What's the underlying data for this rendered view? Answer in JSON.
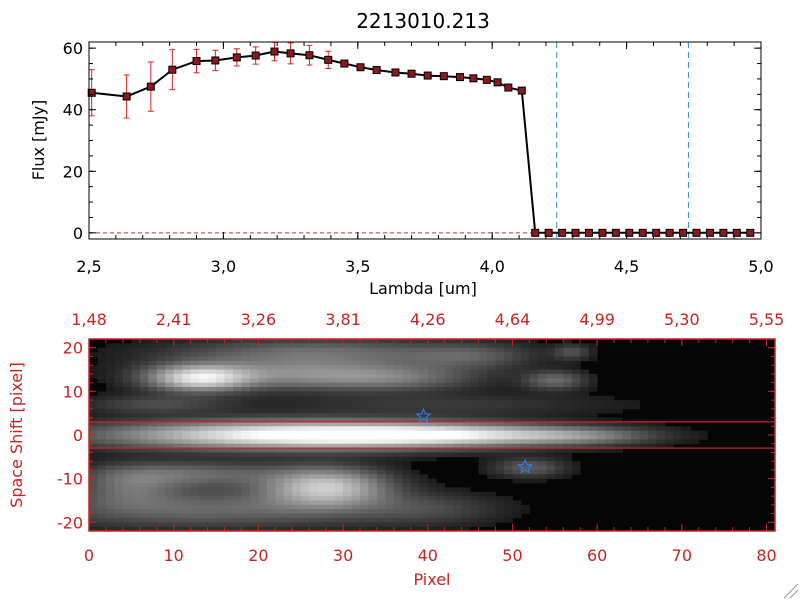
{
  "chart_data": [
    {
      "type": "line",
      "title": "2213010.213",
      "xlabel": "Lambda [um]",
      "ylabel": "Flux [mJy]",
      "xlim": [
        2.5,
        5.0
      ],
      "ylim": [
        -2,
        62
      ],
      "xticks": [
        "2.5",
        "3.0",
        "3.5",
        "4.0",
        "4.5",
        "5.0"
      ],
      "yticks": [
        "0",
        "20",
        "40",
        "60"
      ],
      "series": [
        {
          "x": [
            2.51,
            2.64,
            2.73,
            2.81,
            2.9,
            2.97,
            3.05,
            3.12,
            3.19,
            3.25,
            3.32,
            3.39,
            3.45,
            3.51,
            3.57,
            3.64,
            3.7,
            3.76,
            3.82,
            3.88,
            3.93,
            3.98,
            4.02,
            4.06,
            4.11,
            4.16,
            4.21,
            4.26,
            4.31,
            4.36,
            4.41,
            4.46,
            4.51,
            4.56,
            4.61,
            4.66,
            4.71,
            4.76,
            4.81,
            4.86,
            4.91,
            4.96
          ],
          "y": [
            45.5,
            44.3,
            47.5,
            53.0,
            55.8,
            56.0,
            57.0,
            57.6,
            58.9,
            58.3,
            57.7,
            56.2,
            55.0,
            53.8,
            52.9,
            52.1,
            51.7,
            51.1,
            50.9,
            50.6,
            50.2,
            49.7,
            48.9,
            47.2,
            46.2,
            0,
            0,
            0,
            0,
            0,
            0,
            0,
            0,
            0,
            0,
            0,
            0,
            0,
            0,
            0,
            0,
            0
          ],
          "yerr": [
            7.5,
            7.0,
            8.0,
            6.5,
            3.8,
            3.3,
            2.8,
            2.8,
            3.0,
            3.4,
            3.2,
            2.8,
            0,
            0,
            0,
            0,
            0,
            0,
            0,
            0,
            0,
            0,
            0,
            0,
            0,
            0,
            0,
            0,
            0,
            0,
            0,
            0,
            0,
            0,
            0,
            0,
            0,
            0,
            0,
            0,
            0,
            0
          ]
        }
      ],
      "vlines": [
        4.24,
        4.73
      ],
      "hlines": [
        0
      ],
      "colors": {
        "line": "#000000",
        "markers": "#8b1a1a",
        "errorbars": "#e02020",
        "vlines": "#2a8fd8",
        "hline": "#d03030"
      }
    },
    {
      "type": "heatmap",
      "xlabel": "Pixel",
      "ylabel": "Space Shift [pixel]",
      "xlim": [
        0,
        81
      ],
      "ylim": [
        -22,
        22
      ],
      "xticks": [
        "0",
        "10",
        "20",
        "30",
        "40",
        "50",
        "60",
        "70",
        "80"
      ],
      "yticks": [
        "-20",
        "-10",
        "0",
        "10",
        "20"
      ],
      "top_axis_ticks": [
        "1.48",
        "2.41",
        "3.26",
        "3.81",
        "4.26",
        "4.64",
        "4.99",
        "5.30",
        "5.55"
      ],
      "hlines": [
        3,
        -3
      ],
      "stars": [
        {
          "x": 39.5,
          "y": 4.3
        },
        {
          "x": 51.5,
          "y": -7.3
        }
      ],
      "colors": {
        "axes": "#cc2222",
        "hlines": "#cc2222",
        "stars": "#2a7fd8"
      },
      "blobs": [
        {
          "x": 25,
          "y": 0,
          "sx": 15,
          "sy": 2.2,
          "a": 1.0
        },
        {
          "x": 43,
          "y": 0,
          "sx": 11,
          "sy": 1.6,
          "a": 0.55
        },
        {
          "x": 58,
          "y": -0.3,
          "sx": 6,
          "sy": 1.3,
          "a": 0.25
        },
        {
          "x": 13,
          "y": 13,
          "sx": 4,
          "sy": 2.0,
          "a": 0.75
        },
        {
          "x": 24,
          "y": 14,
          "sx": 10,
          "sy": 2.4,
          "a": 0.4
        },
        {
          "x": 36,
          "y": 13,
          "sx": 7,
          "sy": 2.0,
          "a": 0.25
        },
        {
          "x": 27,
          "y": 19,
          "sx": 12,
          "sy": 2.2,
          "a": 0.3
        },
        {
          "x": 45,
          "y": 18,
          "sx": 5,
          "sy": 2.0,
          "a": 0.2
        },
        {
          "x": 55,
          "y": 12.5,
          "sx": 2.5,
          "sy": 1.5,
          "a": 0.3
        },
        {
          "x": 57,
          "y": 19,
          "sx": 1.5,
          "sy": 1.2,
          "a": 0.2
        },
        {
          "x": 28,
          "y": -12,
          "sx": 5,
          "sy": 3,
          "a": 0.7
        },
        {
          "x": 12,
          "y": -9,
          "sx": 8,
          "sy": 2.0,
          "a": 0.3
        },
        {
          "x": 14,
          "y": -17,
          "sx": 14,
          "sy": 3,
          "a": 0.3
        },
        {
          "x": 5,
          "y": -12,
          "sx": 4,
          "sy": 3,
          "a": 0.25
        },
        {
          "x": 40,
          "y": -17,
          "sx": 6,
          "sy": 2.5,
          "a": 0.15
        },
        {
          "x": 52,
          "y": -7.5,
          "sx": 3,
          "sy": 1.5,
          "a": 0.25
        },
        {
          "x": 8,
          "y": 7,
          "sx": 6,
          "sy": 1.5,
          "a": 0.18
        },
        {
          "x": 42,
          "y": 7,
          "sx": 14,
          "sy": 1.8,
          "a": 0.12
        }
      ]
    }
  ]
}
